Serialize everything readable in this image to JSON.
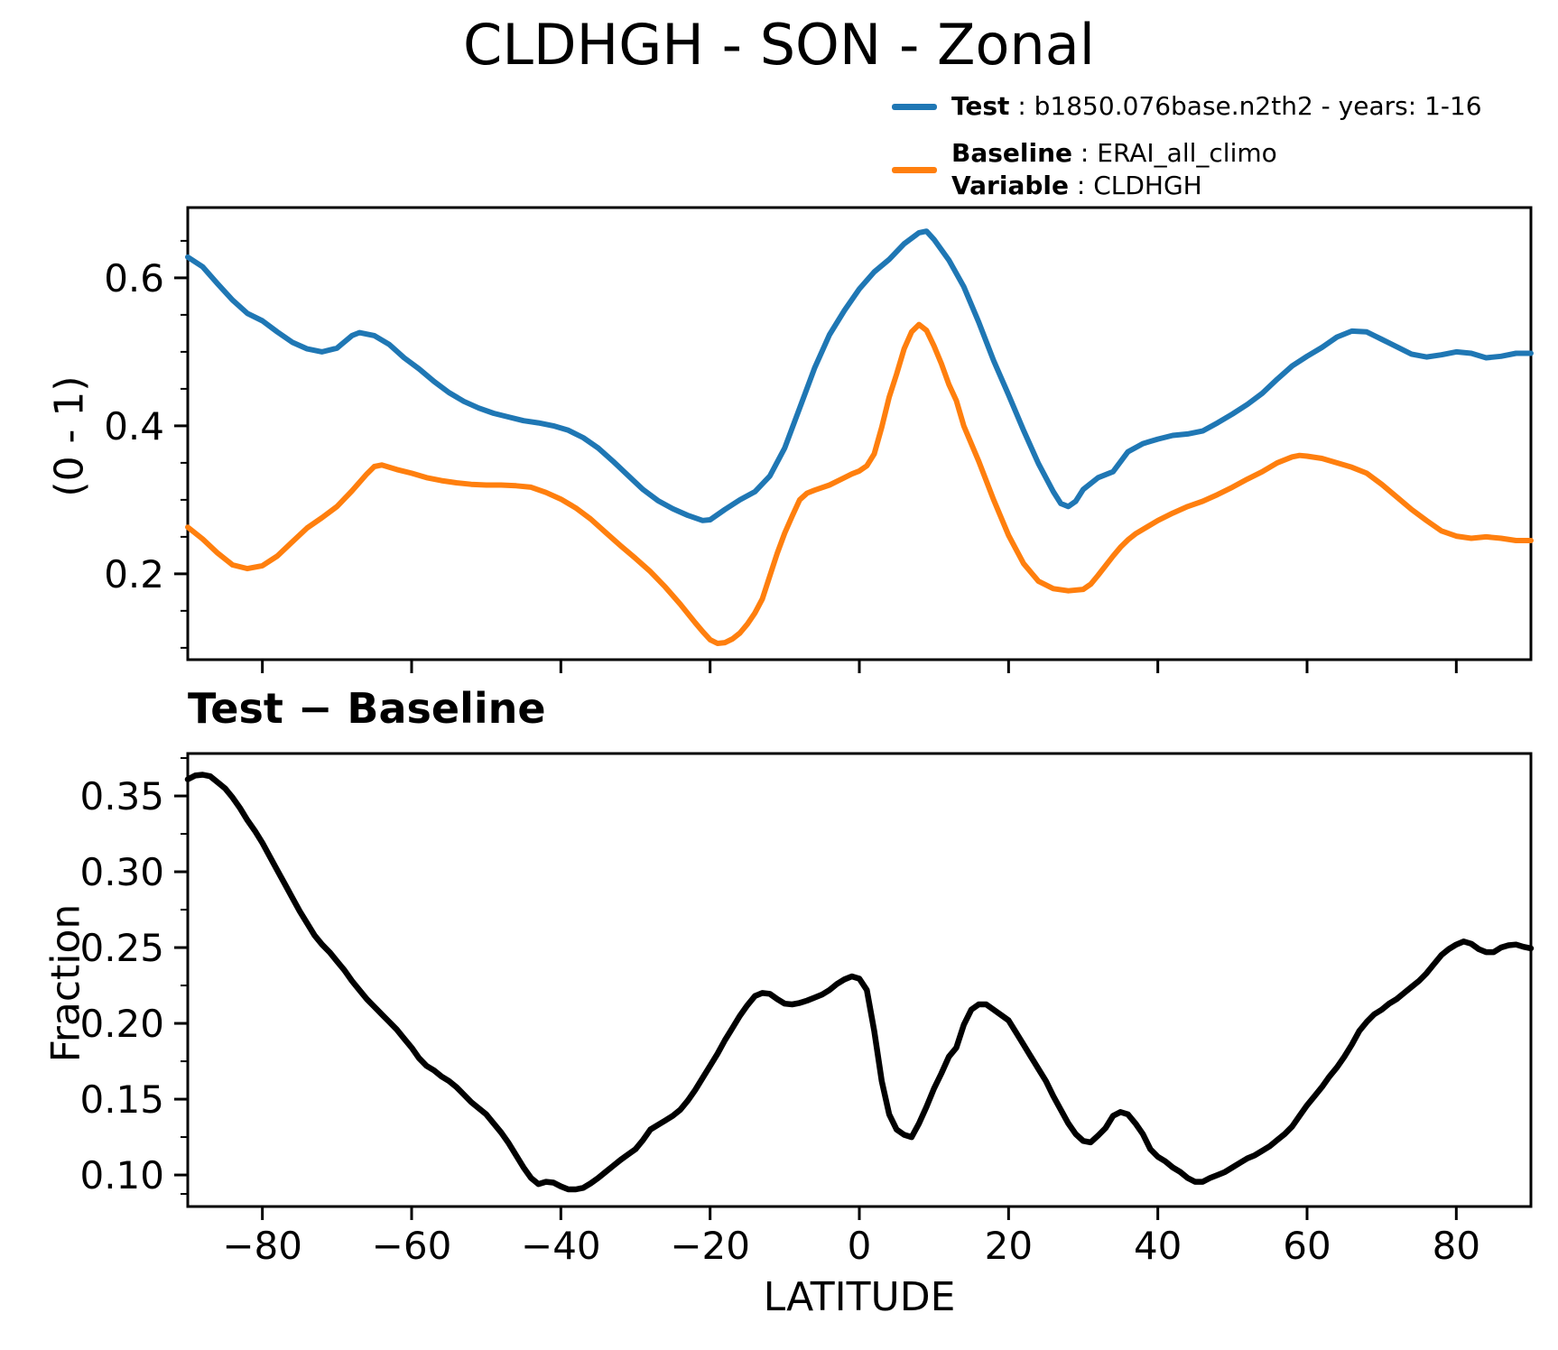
{
  "figure": {
    "title": "CLDHGH - SON - Zonal",
    "legend": {
      "test": {
        "name": "Test",
        "value": " : b1850.076base.n2th2 - years: 1-16",
        "color": "#1f77b4"
      },
      "baseline": {
        "name": "Baseline",
        "value": " : ERAI_all_climo",
        "color": "#ff7f0e"
      },
      "variable": {
        "name": "Variable",
        "value": " : CLDHGH"
      }
    },
    "top_plot": {
      "ylabel": "(0 - 1)"
    },
    "bottom_plot": {
      "title": "Test − Baseline",
      "ylabel": "Fraction",
      "xlabel": "LATITUDE"
    }
  },
  "chart_data": [
    {
      "id": "zonal-means",
      "type": "line",
      "title": "CLDHGH - SON - Zonal",
      "xlabel": "",
      "ylabel": "(0 - 1)",
      "xlim": [
        -90,
        90
      ],
      "ylim": [
        0.084,
        0.695
      ],
      "grid": false,
      "legend_position": "outside upper right",
      "xticks": [
        -80,
        -60,
        -40,
        -20,
        0,
        20,
        40,
        60,
        80
      ],
      "xtick_labels": [
        "−80",
        "−60",
        "−40",
        "−20",
        "0",
        "20",
        "40",
        "60",
        "80"
      ],
      "show_xtick_labels": false,
      "yticks": [
        0.2,
        0.4,
        0.6
      ],
      "ytick_labels": [
        "0.2",
        "0.4",
        "0.6"
      ],
      "yticks_minor": [
        0.1,
        0.15,
        0.25,
        0.3,
        0.35,
        0.45,
        0.5,
        0.55,
        0.65
      ],
      "series": [
        {
          "name": "Test",
          "label": "b1850.076base.n2th2 - years: 1-16",
          "color": "#1f77b4",
          "x": [
            -90,
            -88,
            -86,
            -84,
            -82,
            -80,
            -78,
            -76,
            -74,
            -72,
            -70,
            -68,
            -67,
            -65,
            -63,
            -61,
            -59,
            -57,
            -55,
            -53,
            -51,
            -49,
            -47,
            -45,
            -43,
            -41,
            -39,
            -37,
            -35,
            -33,
            -31,
            -29,
            -27,
            -25,
            -23,
            -21,
            -20,
            -18,
            -16,
            -14,
            -12,
            -10,
            -8,
            -6,
            -4,
            -2,
            0,
            2,
            4,
            6,
            8,
            9,
            10,
            12,
            14,
            16,
            18,
            20,
            22,
            24,
            26,
            27,
            28,
            29,
            30,
            32,
            34,
            36,
            38,
            40,
            42,
            44,
            46,
            48,
            50,
            52,
            54,
            56,
            58,
            60,
            62,
            64,
            66,
            68,
            70,
            72,
            74,
            76,
            78,
            80,
            82,
            84,
            86,
            88,
            90
          ],
          "y": [
            0.628,
            0.615,
            0.592,
            0.57,
            0.552,
            0.542,
            0.527,
            0.513,
            0.504,
            0.5,
            0.505,
            0.522,
            0.526,
            0.522,
            0.51,
            0.492,
            0.477,
            0.46,
            0.445,
            0.433,
            0.424,
            0.417,
            0.412,
            0.407,
            0.404,
            0.4,
            0.394,
            0.384,
            0.37,
            0.352,
            0.333,
            0.314,
            0.299,
            0.288,
            0.279,
            0.272,
            0.273,
            0.287,
            0.3,
            0.311,
            0.332,
            0.37,
            0.424,
            0.478,
            0.523,
            0.556,
            0.585,
            0.608,
            0.625,
            0.646,
            0.661,
            0.663,
            0.652,
            0.624,
            0.588,
            0.54,
            0.488,
            0.442,
            0.394,
            0.349,
            0.311,
            0.295,
            0.291,
            0.298,
            0.314,
            0.33,
            0.338,
            0.365,
            0.376,
            0.382,
            0.387,
            0.389,
            0.393,
            0.404,
            0.416,
            0.429,
            0.444,
            0.463,
            0.481,
            0.494,
            0.506,
            0.52,
            0.528,
            0.527,
            0.517,
            0.507,
            0.497,
            0.493,
            0.496,
            0.5,
            0.498,
            0.492,
            0.494,
            0.498,
            0.498
          ]
        },
        {
          "name": "Baseline",
          "label": "ERAI_all_climo",
          "color": "#ff7f0e",
          "x": [
            -90,
            -88,
            -86,
            -84,
            -82,
            -80,
            -78,
            -76,
            -74,
            -72,
            -70,
            -68,
            -66,
            -65,
            -64,
            -62,
            -60,
            -58,
            -56,
            -54,
            -52,
            -50,
            -48,
            -46,
            -44,
            -42,
            -40,
            -38,
            -36,
            -34,
            -32,
            -30,
            -28,
            -26,
            -24,
            -22,
            -21,
            -20,
            -19,
            -18,
            -17,
            -16,
            -15,
            -14,
            -13,
            -12,
            -11,
            -10,
            -9,
            -8,
            -7,
            -6,
            -4,
            -2,
            -1,
            0,
            1,
            2,
            3,
            4,
            5,
            6,
            7,
            8,
            9,
            10,
            11,
            12,
            13,
            14,
            16,
            18,
            20,
            22,
            24,
            26,
            28,
            30,
            31,
            32,
            33,
            34,
            35,
            36,
            37,
            38,
            40,
            42,
            44,
            46,
            48,
            50,
            52,
            54,
            56,
            58,
            59,
            60,
            62,
            64,
            66,
            68,
            70,
            72,
            74,
            76,
            78,
            80,
            82,
            84,
            86,
            88,
            90
          ],
          "y": [
            0.263,
            0.247,
            0.228,
            0.212,
            0.207,
            0.211,
            0.224,
            0.243,
            0.262,
            0.276,
            0.291,
            0.312,
            0.335,
            0.345,
            0.347,
            0.341,
            0.336,
            0.33,
            0.326,
            0.323,
            0.321,
            0.32,
            0.32,
            0.319,
            0.317,
            0.31,
            0.301,
            0.289,
            0.274,
            0.256,
            0.238,
            0.221,
            0.203,
            0.182,
            0.159,
            0.134,
            0.122,
            0.111,
            0.106,
            0.107,
            0.112,
            0.12,
            0.132,
            0.147,
            0.166,
            0.197,
            0.228,
            0.255,
            0.278,
            0.3,
            0.309,
            0.313,
            0.32,
            0.33,
            0.335,
            0.339,
            0.346,
            0.362,
            0.398,
            0.439,
            0.47,
            0.504,
            0.527,
            0.537,
            0.529,
            0.508,
            0.484,
            0.456,
            0.434,
            0.4,
            0.352,
            0.3,
            0.252,
            0.214,
            0.19,
            0.18,
            0.177,
            0.179,
            0.186,
            0.198,
            0.211,
            0.224,
            0.236,
            0.246,
            0.254,
            0.26,
            0.272,
            0.282,
            0.291,
            0.298,
            0.307,
            0.317,
            0.328,
            0.338,
            0.35,
            0.358,
            0.36,
            0.359,
            0.356,
            0.35,
            0.344,
            0.336,
            0.321,
            0.304,
            0.287,
            0.272,
            0.258,
            0.251,
            0.248,
            0.25,
            0.248,
            0.245,
            0.245
          ]
        }
      ]
    },
    {
      "id": "difference",
      "type": "line",
      "title": "Test − Baseline",
      "xlabel": "LATITUDE",
      "ylabel": "Fraction",
      "xlim": [
        -90,
        90
      ],
      "ylim": [
        0.0792,
        0.378
      ],
      "grid": false,
      "xticks": [
        -80,
        -60,
        -40,
        -20,
        0,
        20,
        40,
        60,
        80
      ],
      "xtick_labels": [
        "−80",
        "−60",
        "−40",
        "−20",
        "0",
        "20",
        "40",
        "60",
        "80"
      ],
      "show_xtick_labels": true,
      "yticks": [
        0.1,
        0.15,
        0.2,
        0.25,
        0.3,
        0.35
      ],
      "ytick_labels": [
        "0.10",
        "0.15",
        "0.20",
        "0.25",
        "0.30",
        "0.35"
      ],
      "yticks_minor": [
        0.0875,
        0.125,
        0.175,
        0.225,
        0.275,
        0.325,
        0.375
      ],
      "series": [
        {
          "name": "Test - Baseline",
          "label": "Test minus Baseline difference",
          "color": "#000000",
          "x": [
            -90,
            -89,
            -88,
            -87,
            -86,
            -85,
            -84,
            -83,
            -82,
            -81,
            -80,
            -79,
            -78,
            -77,
            -76,
            -75,
            -74,
            -73,
            -72,
            -71,
            -70,
            -69,
            -68,
            -67,
            -66,
            -65,
            -64,
            -63,
            -62,
            -61,
            -60,
            -59,
            -58,
            -57,
            -56,
            -55,
            -54,
            -53,
            -52,
            -51,
            -50,
            -49,
            -48,
            -47,
            -46,
            -45,
            -44,
            -43,
            -42,
            -41,
            -40,
            -39,
            -38,
            -37,
            -36,
            -35,
            -34,
            -33,
            -32,
            -31,
            -30,
            -29,
            -28,
            -27,
            -26,
            -25,
            -24,
            -23,
            -22,
            -21,
            -20,
            -19,
            -18,
            -17,
            -16,
            -15,
            -14,
            -13,
            -12,
            -11,
            -10,
            -9,
            -8,
            -7,
            -6,
            -5,
            -4,
            -3,
            -2,
            -1,
            0,
            1,
            2,
            3,
            4,
            5,
            6,
            7,
            8,
            9,
            10,
            11,
            12,
            13,
            14,
            15,
            16,
            17,
            18,
            19,
            20,
            21,
            22,
            23,
            24,
            25,
            26,
            27,
            28,
            29,
            30,
            31,
            32,
            33,
            34,
            35,
            36,
            37,
            38,
            39,
            40,
            41,
            42,
            43,
            44,
            45,
            46,
            47,
            48,
            49,
            50,
            51,
            52,
            53,
            54,
            55,
            56,
            57,
            58,
            59,
            60,
            61,
            62,
            63,
            64,
            65,
            66,
            67,
            68,
            69,
            70,
            71,
            72,
            73,
            74,
            75,
            76,
            77,
            78,
            79,
            80,
            81,
            82,
            83,
            84,
            85,
            86,
            87,
            88,
            89,
            90
          ],
          "y": [
            0.361,
            0.3635,
            0.364,
            0.363,
            0.359,
            0.355,
            0.349,
            0.342,
            0.334,
            0.327,
            0.319,
            0.31,
            0.301,
            0.292,
            0.283,
            0.274,
            0.266,
            0.258,
            0.252,
            0.247,
            0.241,
            0.235,
            0.228,
            0.222,
            0.216,
            0.211,
            0.206,
            0.201,
            0.196,
            0.19,
            0.184,
            0.177,
            0.172,
            0.169,
            0.165,
            0.162,
            0.158,
            0.153,
            0.148,
            0.144,
            0.14,
            0.134,
            0.128,
            0.121,
            0.113,
            0.105,
            0.098,
            0.094,
            0.0955,
            0.095,
            0.0925,
            0.0905,
            0.0905,
            0.0915,
            0.0945,
            0.098,
            0.102,
            0.106,
            0.11,
            0.1135,
            0.117,
            0.123,
            0.13,
            0.133,
            0.136,
            0.139,
            0.143,
            0.149,
            0.156,
            0.164,
            0.172,
            0.18,
            0.189,
            0.197,
            0.205,
            0.212,
            0.218,
            0.22,
            0.2195,
            0.216,
            0.213,
            0.2125,
            0.2135,
            0.215,
            0.217,
            0.219,
            0.222,
            0.226,
            0.229,
            0.231,
            0.2295,
            0.222,
            0.195,
            0.162,
            0.14,
            0.13,
            0.1265,
            0.125,
            0.134,
            0.145,
            0.157,
            0.167,
            0.178,
            0.184,
            0.199,
            0.209,
            0.2125,
            0.2125,
            0.209,
            0.2055,
            0.202,
            0.194,
            0.186,
            0.178,
            0.17,
            0.162,
            0.152,
            0.143,
            0.134,
            0.127,
            0.1225,
            0.1215,
            0.126,
            0.131,
            0.139,
            0.1415,
            0.14,
            0.134,
            0.127,
            0.117,
            0.112,
            0.109,
            0.105,
            0.102,
            0.098,
            0.0955,
            0.0955,
            0.098,
            0.1,
            0.102,
            0.105,
            0.108,
            0.111,
            0.113,
            0.116,
            0.119,
            0.123,
            0.127,
            0.132,
            0.139,
            0.146,
            0.152,
            0.158,
            0.165,
            0.171,
            0.178,
            0.186,
            0.195,
            0.201,
            0.206,
            0.209,
            0.213,
            0.216,
            0.22,
            0.224,
            0.228,
            0.233,
            0.239,
            0.245,
            0.249,
            0.252,
            0.254,
            0.2525,
            0.249,
            0.247,
            0.247,
            0.25,
            0.2515,
            0.252,
            0.2505,
            0.2495
          ]
        }
      ]
    }
  ]
}
